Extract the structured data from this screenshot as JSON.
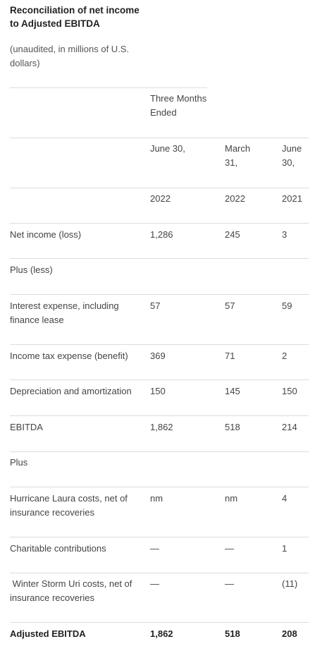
{
  "title": "Reconciliation of net income to Adjusted EBITDA",
  "subtitle": "(unaudited, in millions of U.S. dollars)",
  "header": {
    "period_group": "Three Months Ended",
    "col_a_date": "June 30,",
    "col_b_date": "March 31,",
    "col_c_date": "June 30,",
    "col_a_year": "2022",
    "col_b_year": "2022",
    "col_c_year": "2021"
  },
  "rows": [
    {
      "label": "Net income (loss)",
      "a": "1,286",
      "b": "245",
      "c": "3"
    },
    {
      "label": "Plus (less)",
      "a": "",
      "b": "",
      "c": ""
    },
    {
      "label": "Interest expense, including finance lease",
      "a": "57",
      "b": "57",
      "c": "59"
    },
    {
      "label": "Income tax expense (benefit)",
      "a": "369",
      "b": "71",
      "c": "2"
    },
    {
      "label": "Depreciation and amortization",
      "a": "150",
      "b": "145",
      "c": "150"
    },
    {
      "label": "EBITDA",
      "a": "1,862",
      "b": "518",
      "c": "214"
    },
    {
      "label": "Plus",
      "a": "",
      "b": "",
      "c": ""
    },
    {
      "label": "Hurricane Laura costs, net of insurance recoveries",
      "a": "nm",
      "b": "nm",
      "c": "4"
    },
    {
      "label": "Charitable contributions",
      "a": "—",
      "b": "—",
      "c": "1"
    },
    {
      "label": " Winter Storm Uri costs, net of insurance recoveries",
      "a": "—",
      "b": "—",
      "c": "(11)"
    },
    {
      "label": "Adjusted EBITDA",
      "a": "1,862",
      "b": "518",
      "c": "208"
    }
  ]
}
